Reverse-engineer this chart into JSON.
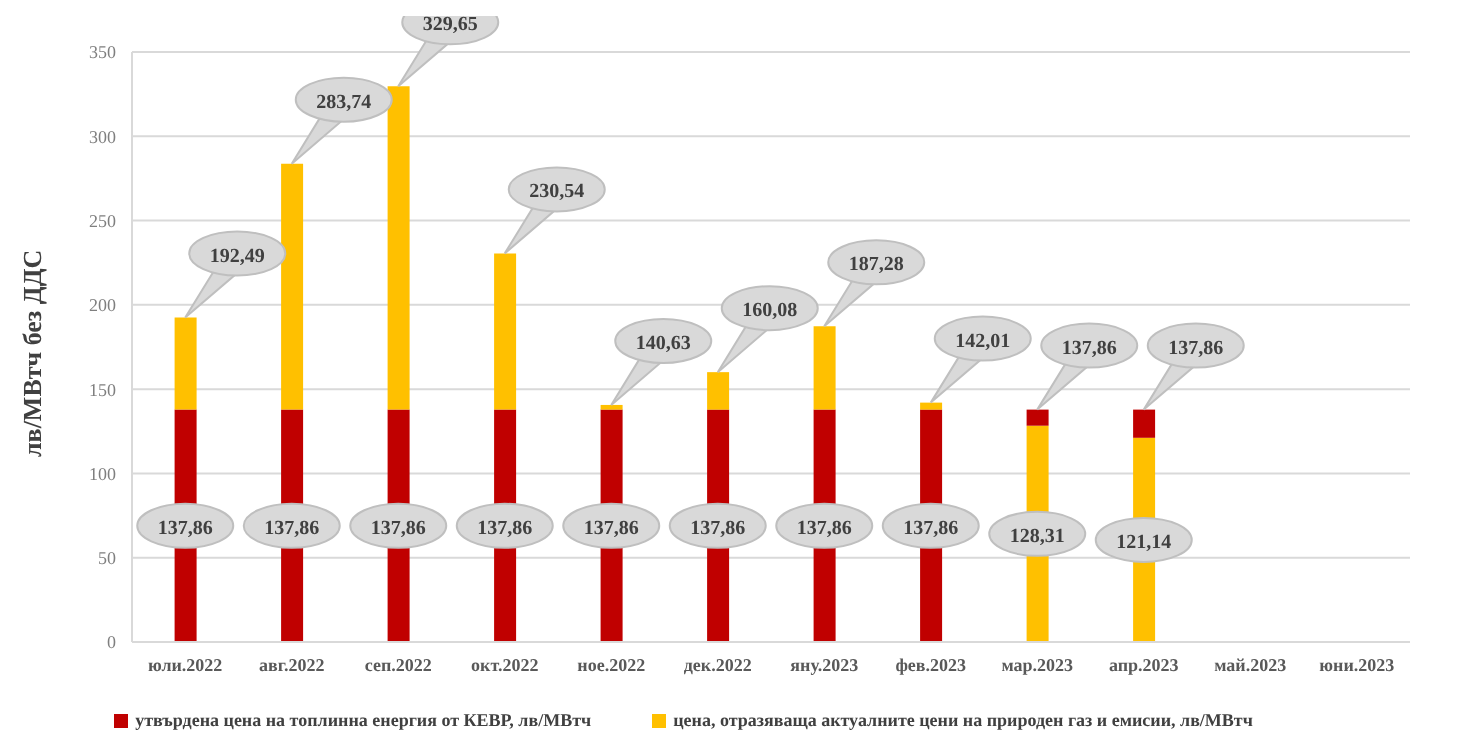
{
  "chart_data": {
    "type": "bar",
    "stacked": true,
    "ylabel": "лв/MВтч без ДДС",
    "categories": [
      "юли.2022",
      "авг.2022",
      "сеп.2022",
      "окт.2022",
      "ное.2022",
      "дек.2022",
      "яну.2023",
      "фев.2023",
      "мар.2023",
      "апр.2023",
      "май.2023",
      "юни.2023"
    ],
    "series": [
      {
        "name": "утвърдена цена на топлинна енергия от КЕВР, лв/MВтч",
        "color": "#c00000",
        "values": [
          137.86,
          137.86,
          137.86,
          137.86,
          137.86,
          137.86,
          137.86,
          137.86,
          null,
          null,
          null,
          null
        ],
        "value_labels": [
          "137,86",
          "137,86",
          "137,86",
          "137,86",
          "137,86",
          "137,86",
          "137,86",
          "137,86",
          null,
          null,
          null,
          null
        ]
      },
      {
        "name": "цена, отразяваща актуалните  цени на природен газ и емисии, лв/MВтч",
        "color": "#ffc000",
        "values": [
          54.63,
          145.88,
          191.79,
          92.68,
          2.77,
          22.22,
          49.42,
          4.15,
          128.31,
          121.14,
          null,
          null
        ],
        "value_labels": [
          null,
          null,
          null,
          null,
          null,
          null,
          null,
          null,
          "128,31",
          "121,14",
          null,
          null
        ]
      },
      {
        "color": "#c00000",
        "values": [
          null,
          null,
          null,
          null,
          null,
          null,
          null,
          null,
          9.55,
          16.72,
          null,
          null
        ]
      }
    ],
    "totals": [
      "192,49",
      "283,74",
      "329,65",
      "230,54",
      "140,63",
      "160,08",
      "187,28",
      "142,01",
      "137,86",
      "137,86",
      null,
      null
    ],
    "ylim": [
      0,
      350
    ],
    "yticks": [
      0,
      50,
      100,
      150,
      200,
      250,
      300,
      350
    ],
    "grid": "y",
    "legend": "bottom"
  }
}
